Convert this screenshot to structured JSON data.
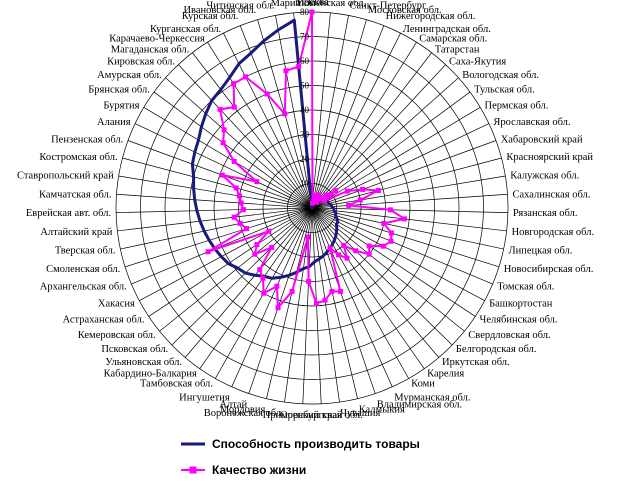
{
  "chart_data": {
    "type": "radar",
    "title": "",
    "categories": [
      "Москва",
      "Тюменская обл.",
      "Санкт-Петербург",
      "Московская обл.",
      "Нижегородская обл.",
      "Ленинградская обл.",
      "Самарская обл.",
      "Татарстан",
      "Саха-Якутия",
      "Вологодская обл.",
      "Тульская обл.",
      "Пермская обл.",
      "Ярославская обл.",
      "Хабаровский край",
      "Красноярский край",
      "Калужская обл.",
      "Сахалинская обл.",
      "Рязанская обл.",
      "Новгородская обл.",
      "Липецкая обл.",
      "Новосибирская обл.",
      "Томская обл.",
      "Башкортостан",
      "Челябинская обл.",
      "Свердловская обл.",
      "Белгородская обл.",
      "Иркутская обл.",
      "Карелия",
      "Коми",
      "Мурманская обл.",
      "Владимирская обл.",
      "Калмыкия",
      "Чувашия",
      "Оренбургская обл.",
      "Приморский край",
      "Воронежская обл.",
      "Мордовия",
      "Алтай",
      "Ингушетия",
      "Тамбовская обл.",
      "Кабардино-Балкария",
      "Ульяновская обл.",
      "Псковская обл.",
      "Кемеровская обл.",
      "Астраханская обл.",
      "Хакасия",
      "Архангельская обл.",
      "Смоленская обл.",
      "Тверская обл.",
      "Алтайский край",
      "Еврейская авт. обл.",
      "Камчатская обл.",
      "Ставропольский край",
      "Костромская обл.",
      "Пензенская обл.",
      "Алания",
      "Бурятия",
      "Брянская обл.",
      "Амурская обл.",
      "Кировская обл.",
      "Магаданская обл.",
      "Карачаево-Черкессия",
      "Курганская обл.",
      "Курская обл.",
      "Ивановская обл.",
      "Читинская обл.",
      "Марий Эл"
    ],
    "r_ticks": [
      0,
      10,
      20,
      30,
      40,
      50,
      60,
      70,
      80
    ],
    "r_range": [
      0,
      80
    ],
    "series": [
      {
        "name": "Способность производить товары",
        "color": "#1a1a7a",
        "marker": "none",
        "values": [
          0,
          1,
          1,
          2,
          2,
          3,
          3,
          4,
          4,
          5,
          5,
          6,
          6,
          7,
          7,
          8,
          8,
          9,
          9,
          10,
          10,
          11,
          12,
          12,
          13,
          14,
          15,
          16,
          17,
          18,
          19,
          20,
          21,
          22,
          24,
          25,
          27,
          29,
          31,
          33,
          34,
          36,
          38,
          39,
          41,
          42,
          43,
          44,
          45,
          46,
          47,
          48,
          49,
          50,
          52,
          53,
          54,
          56,
          58,
          60,
          61,
          63,
          66,
          68,
          71,
          74,
          77
        ]
      },
      {
        "name": "Качество жизни",
        "color": "#ff00ff",
        "marker": "square",
        "values": [
          80,
          2,
          5,
          3,
          4,
          6,
          4,
          3,
          5,
          8,
          12,
          6,
          16,
          22,
          28,
          20,
          15,
          32,
          38,
          30,
          34,
          35,
          33,
          28,
          30,
          25,
          20,
          25,
          22,
          18,
          36,
          35,
          38,
          39,
          30,
          12,
          35,
          43,
          35,
          40,
          35,
          33,
          23,
          30,
          27,
          20,
          46,
          28,
          30,
          32,
          28,
          29,
          30,
          32,
          39,
          25,
          37,
          45,
          48,
          55,
          52,
          60,
          60,
          50,
          40,
          57,
          58
        ]
      }
    ],
    "legend_position": "bottom",
    "grid": true
  }
}
